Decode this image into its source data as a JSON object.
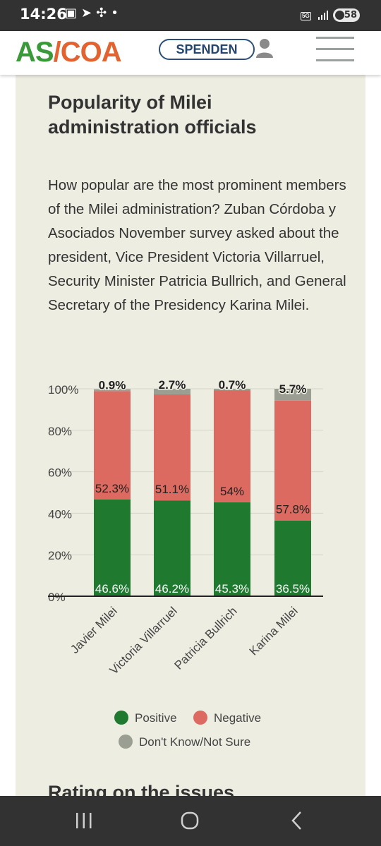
{
  "status_bar": {
    "time": "14:26",
    "network": "5G",
    "battery": "58",
    "icons": [
      "screenshot-icon",
      "navigation-icon",
      "fan-icon",
      "dot-icon"
    ]
  },
  "header": {
    "logo_left": "AS",
    "logo_slash": "/",
    "logo_right": "COA",
    "donate_label": "SPENDEN",
    "colors": {
      "logo_green": "#3a9a3a",
      "logo_orange": "#e2632f",
      "button_blue": "#24466e"
    }
  },
  "article": {
    "title": "Popularity of Milei administration officials",
    "description": "How popular are the most prominent members of the Milei administration? Zuban Córdoba y Asociados November survey asked about the president, Vice President Victoria Villarruel, Security Minister Patricia Bullrich, and General Secretary of the Presidency Karina Milei.",
    "next_heading": "Rating on the issues"
  },
  "chart_data": {
    "type": "bar",
    "stacked": true,
    "categories": [
      "Javier Milei",
      "Victoria Villarruel",
      "Patricia Bullrich",
      "Karina Milei"
    ],
    "series": [
      {
        "name": "Positive",
        "values": [
          46.6,
          46.2,
          45.3,
          36.5
        ],
        "labels": [
          "46.6%",
          "46.2%",
          "45.3%",
          "36.5%"
        ],
        "color": "#1f7a30"
      },
      {
        "name": "Negative",
        "values": [
          52.3,
          51.1,
          54,
          57.8
        ],
        "labels": [
          "52.3%",
          "51.1%",
          "54%",
          "57.8%"
        ],
        "color": "#dc6a60"
      },
      {
        "name": "Don't Know/Not Sure",
        "values": [
          0.9,
          2.7,
          0.7,
          5.7
        ],
        "labels": [
          "0.9%",
          "2.7%",
          "0.7%",
          "5.7%"
        ],
        "color": "#9b9e92"
      }
    ],
    "y_ticks": [
      "0%",
      "20%",
      "40%",
      "60%",
      "80%",
      "100%"
    ],
    "ylim": [
      0,
      100
    ],
    "grid": true,
    "legend": "bottom-center"
  }
}
